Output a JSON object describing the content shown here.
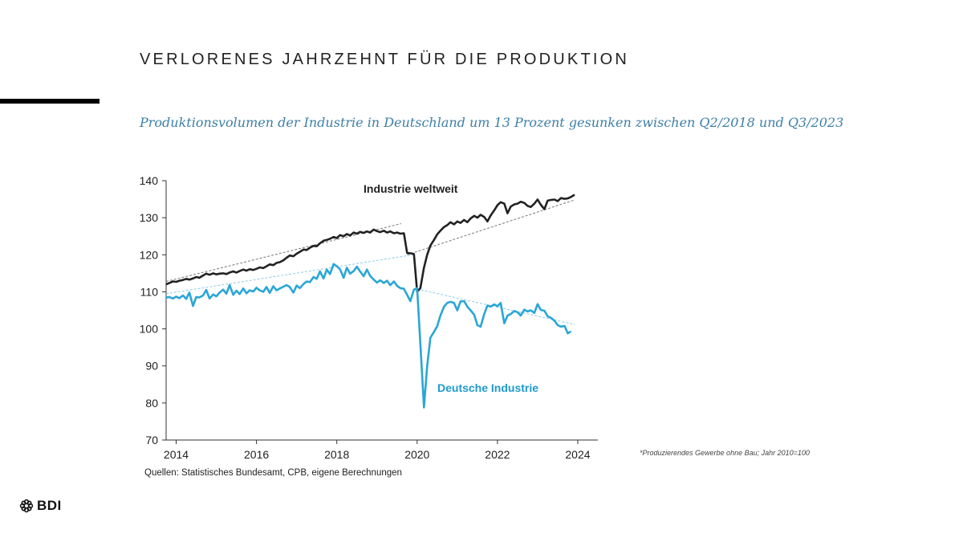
{
  "header": {
    "title": "VERLORENES JAHRZEHNT FÜR DIE PRODUKTION",
    "subtitle": "Produktionsvolumen der Industrie in Deutschland um 13 Prozent gesunken zwischen Q2/2018 und Q3/2023"
  },
  "footnote": "*Produzierendes Gewerbe ohne Bau; Jahr 2010=100",
  "source": "Quellen: Statistisches Bundesamt, CPB,  eigene Berechnungen",
  "logo": {
    "text": "BDI"
  },
  "colors": {
    "world": "#222222",
    "germany": "#2aa6d6",
    "germany_label": "#1e9ad0"
  },
  "chart_data": {
    "type": "line",
    "title": "",
    "xlabel": "",
    "ylabel": "",
    "ylim": [
      70,
      140
    ],
    "xlim": [
      2013.75,
      2024.5
    ],
    "y_ticks": [
      140,
      130,
      120,
      110,
      100,
      90,
      80,
      70
    ],
    "x_ticks": [
      2014,
      2016,
      2018,
      2020,
      2022,
      2024
    ],
    "series": [
      {
        "name": "Industrie weltweit",
        "label": "Industrie weltweit",
        "points": [
          [
            2013.75,
            112.0
          ],
          [
            2013.83,
            112.4
          ],
          [
            2013.92,
            112.8
          ],
          [
            2014.0,
            112.7
          ],
          [
            2014.08,
            113.0
          ],
          [
            2014.17,
            113.2
          ],
          [
            2014.25,
            113.5
          ],
          [
            2014.33,
            113.3
          ],
          [
            2014.42,
            113.6
          ],
          [
            2014.5,
            114.0
          ],
          [
            2014.58,
            113.8
          ],
          [
            2014.67,
            114.4
          ],
          [
            2014.75,
            114.9
          ],
          [
            2014.83,
            114.6
          ],
          [
            2014.92,
            115.0
          ],
          [
            2015.0,
            114.7
          ],
          [
            2015.08,
            114.9
          ],
          [
            2015.17,
            115.0
          ],
          [
            2015.25,
            114.8
          ],
          [
            2015.33,
            115.2
          ],
          [
            2015.42,
            115.5
          ],
          [
            2015.5,
            115.2
          ],
          [
            2015.58,
            115.6
          ],
          [
            2015.67,
            116.0
          ],
          [
            2015.75,
            115.7
          ],
          [
            2015.83,
            116.1
          ],
          [
            2015.92,
            115.9
          ],
          [
            2016.0,
            116.2
          ],
          [
            2016.08,
            116.6
          ],
          [
            2016.17,
            116.4
          ],
          [
            2016.25,
            116.9
          ],
          [
            2016.33,
            117.4
          ],
          [
            2016.42,
            117.2
          ],
          [
            2016.5,
            117.8
          ],
          [
            2016.58,
            118.0
          ],
          [
            2016.67,
            118.5
          ],
          [
            2016.75,
            119.2
          ],
          [
            2016.83,
            119.8
          ],
          [
            2016.92,
            119.6
          ],
          [
            2017.0,
            120.3
          ],
          [
            2017.08,
            120.8
          ],
          [
            2017.17,
            121.4
          ],
          [
            2017.25,
            121.3
          ],
          [
            2017.33,
            121.9
          ],
          [
            2017.42,
            122.4
          ],
          [
            2017.5,
            122.3
          ],
          [
            2017.58,
            123.1
          ],
          [
            2017.67,
            123.8
          ],
          [
            2017.75,
            124.0
          ],
          [
            2017.83,
            124.3
          ],
          [
            2017.92,
            124.8
          ],
          [
            2018.0,
            124.5
          ],
          [
            2018.08,
            125.3
          ],
          [
            2018.17,
            125.0
          ],
          [
            2018.25,
            125.6
          ],
          [
            2018.33,
            125.2
          ],
          [
            2018.42,
            126.0
          ],
          [
            2018.5,
            125.7
          ],
          [
            2018.58,
            126.2
          ],
          [
            2018.67,
            125.9
          ],
          [
            2018.75,
            126.3
          ],
          [
            2018.83,
            126.0
          ],
          [
            2018.92,
            126.8
          ],
          [
            2019.0,
            126.4
          ],
          [
            2019.08,
            126.1
          ],
          [
            2019.17,
            126.5
          ],
          [
            2019.25,
            126.0
          ],
          [
            2019.33,
            126.3
          ],
          [
            2019.42,
            125.8
          ],
          [
            2019.5,
            126.0
          ],
          [
            2019.58,
            125.7
          ],
          [
            2019.67,
            125.8
          ],
          [
            2019.75,
            120.5
          ],
          [
            2019.83,
            120.4
          ],
          [
            2019.92,
            120.2
          ],
          [
            2020.0,
            110.0
          ],
          [
            2020.08,
            111.0
          ],
          [
            2020.17,
            116.5
          ],
          [
            2020.25,
            120.0
          ],
          [
            2020.33,
            122.5
          ],
          [
            2020.42,
            124.0
          ],
          [
            2020.5,
            125.5
          ],
          [
            2020.58,
            126.5
          ],
          [
            2020.67,
            127.5
          ],
          [
            2020.75,
            128.0
          ],
          [
            2020.83,
            128.8
          ],
          [
            2020.92,
            128.2
          ],
          [
            2021.0,
            129.0
          ],
          [
            2021.08,
            128.6
          ],
          [
            2021.17,
            129.4
          ],
          [
            2021.25,
            128.8
          ],
          [
            2021.33,
            129.8
          ],
          [
            2021.42,
            130.5
          ],
          [
            2021.5,
            130.0
          ],
          [
            2021.58,
            130.8
          ],
          [
            2021.67,
            130.2
          ],
          [
            2021.75,
            129.0
          ],
          [
            2021.83,
            130.6
          ],
          [
            2021.92,
            132.0
          ],
          [
            2022.0,
            133.4
          ],
          [
            2022.08,
            134.2
          ],
          [
            2022.17,
            133.8
          ],
          [
            2022.25,
            131.2
          ],
          [
            2022.33,
            133.0
          ],
          [
            2022.42,
            133.6
          ],
          [
            2022.5,
            133.8
          ],
          [
            2022.58,
            134.3
          ],
          [
            2022.67,
            134.0
          ],
          [
            2022.75,
            133.2
          ],
          [
            2022.83,
            132.9
          ],
          [
            2022.92,
            133.8
          ],
          [
            2023.0,
            134.9
          ],
          [
            2023.08,
            133.5
          ],
          [
            2023.17,
            132.3
          ],
          [
            2023.25,
            134.6
          ],
          [
            2023.33,
            134.8
          ],
          [
            2023.42,
            134.9
          ],
          [
            2023.5,
            134.5
          ],
          [
            2023.58,
            135.3
          ],
          [
            2023.67,
            135.1
          ],
          [
            2023.75,
            135.2
          ],
          [
            2023.83,
            135.6
          ],
          [
            2023.92,
            136.2
          ]
        ]
      },
      {
        "name": "Deutsche Industrie",
        "label": "Deutsche Industrie",
        "points": [
          [
            2013.75,
            108.5
          ],
          [
            2013.83,
            108.6
          ],
          [
            2013.92,
            108.2
          ],
          [
            2014.0,
            108.7
          ],
          [
            2014.08,
            108.3
          ],
          [
            2014.17,
            109.0
          ],
          [
            2014.25,
            108.1
          ],
          [
            2014.33,
            109.8
          ],
          [
            2014.42,
            106.2
          ],
          [
            2014.5,
            108.6
          ],
          [
            2014.58,
            108.5
          ],
          [
            2014.67,
            109.0
          ],
          [
            2014.75,
            110.5
          ],
          [
            2014.83,
            108.2
          ],
          [
            2014.92,
            109.3
          ],
          [
            2015.0,
            108.8
          ],
          [
            2015.08,
            109.8
          ],
          [
            2015.17,
            110.6
          ],
          [
            2015.25,
            109.5
          ],
          [
            2015.33,
            111.8
          ],
          [
            2015.42,
            109.2
          ],
          [
            2015.5,
            110.3
          ],
          [
            2015.58,
            109.4
          ],
          [
            2015.67,
            110.9
          ],
          [
            2015.75,
            109.6
          ],
          [
            2015.83,
            110.4
          ],
          [
            2015.92,
            110.1
          ],
          [
            2016.0,
            111.1
          ],
          [
            2016.08,
            110.4
          ],
          [
            2016.17,
            110.0
          ],
          [
            2016.25,
            111.3
          ],
          [
            2016.33,
            109.7
          ],
          [
            2016.42,
            111.5
          ],
          [
            2016.5,
            110.4
          ],
          [
            2016.58,
            110.9
          ],
          [
            2016.67,
            111.4
          ],
          [
            2016.75,
            111.8
          ],
          [
            2016.83,
            111.3
          ],
          [
            2016.92,
            109.8
          ],
          [
            2017.0,
            111.7
          ],
          [
            2017.08,
            111.0
          ],
          [
            2017.17,
            112.1
          ],
          [
            2017.25,
            112.8
          ],
          [
            2017.33,
            112.6
          ],
          [
            2017.42,
            114.0
          ],
          [
            2017.5,
            113.5
          ],
          [
            2017.58,
            115.5
          ],
          [
            2017.67,
            113.6
          ],
          [
            2017.75,
            116.0
          ],
          [
            2017.83,
            114.8
          ],
          [
            2017.92,
            117.5
          ],
          [
            2018.0,
            116.9
          ],
          [
            2018.08,
            116.1
          ],
          [
            2018.17,
            113.8
          ],
          [
            2018.25,
            116.5
          ],
          [
            2018.33,
            114.9
          ],
          [
            2018.42,
            115.6
          ],
          [
            2018.5,
            116.8
          ],
          [
            2018.58,
            115.5
          ],
          [
            2018.67,
            114.2
          ],
          [
            2018.75,
            116.0
          ],
          [
            2018.83,
            114.3
          ],
          [
            2018.92,
            113.3
          ],
          [
            2019.0,
            112.5
          ],
          [
            2019.08,
            113.1
          ],
          [
            2019.17,
            112.4
          ],
          [
            2019.25,
            113.0
          ],
          [
            2019.33,
            111.8
          ],
          [
            2019.42,
            112.8
          ],
          [
            2019.5,
            111.6
          ],
          [
            2019.58,
            111.0
          ],
          [
            2019.67,
            110.8
          ],
          [
            2019.75,
            109.2
          ],
          [
            2019.83,
            107.5
          ],
          [
            2019.92,
            110.6
          ],
          [
            2020.0,
            111.0
          ],
          [
            2020.08,
            96.0
          ],
          [
            2020.17,
            78.8
          ],
          [
            2020.25,
            90.0
          ],
          [
            2020.33,
            97.6
          ],
          [
            2020.42,
            99.2
          ],
          [
            2020.5,
            100.7
          ],
          [
            2020.58,
            103.6
          ],
          [
            2020.67,
            106.0
          ],
          [
            2020.75,
            107.0
          ],
          [
            2020.83,
            107.3
          ],
          [
            2020.92,
            107.0
          ],
          [
            2021.0,
            105.0
          ],
          [
            2021.08,
            107.4
          ],
          [
            2021.17,
            107.5
          ],
          [
            2021.25,
            106.0
          ],
          [
            2021.33,
            105.0
          ],
          [
            2021.42,
            103.8
          ],
          [
            2021.5,
            101.0
          ],
          [
            2021.58,
            100.6
          ],
          [
            2021.67,
            104.0
          ],
          [
            2021.75,
            106.3
          ],
          [
            2021.83,
            106.0
          ],
          [
            2021.92,
            106.6
          ],
          [
            2022.0,
            106.1
          ],
          [
            2022.08,
            107.0
          ],
          [
            2022.17,
            101.5
          ],
          [
            2022.25,
            103.6
          ],
          [
            2022.33,
            104.0
          ],
          [
            2022.42,
            104.8
          ],
          [
            2022.5,
            104.5
          ],
          [
            2022.58,
            103.6
          ],
          [
            2022.67,
            105.2
          ],
          [
            2022.75,
            104.7
          ],
          [
            2022.83,
            105.0
          ],
          [
            2022.92,
            104.3
          ],
          [
            2023.0,
            106.7
          ],
          [
            2023.08,
            105.1
          ],
          [
            2023.17,
            104.9
          ],
          [
            2023.25,
            103.4
          ],
          [
            2023.33,
            103.0
          ],
          [
            2023.42,
            102.2
          ],
          [
            2023.5,
            101.0
          ],
          [
            2023.58,
            100.6
          ],
          [
            2023.67,
            100.8
          ],
          [
            2023.75,
            98.8
          ],
          [
            2023.83,
            99.3
          ]
        ]
      }
    ],
    "trendlines": [
      {
        "series": "Industrie weltweit",
        "points": [
          [
            2013.75,
            112.8
          ],
          [
            2019.6,
            128.4
          ]
        ]
      },
      {
        "series": "Industrie weltweit",
        "points": [
          [
            2019.75,
            120.0
          ],
          [
            2023.92,
            134.8
          ]
        ]
      },
      {
        "series": "Deutsche Industrie",
        "points": [
          [
            2013.75,
            109.5
          ],
          [
            2019.9,
            120.0
          ]
        ]
      },
      {
        "series": "Deutsche Industrie",
        "points": [
          [
            2020.1,
            110.5
          ],
          [
            2023.92,
            101.2
          ]
        ]
      }
    ]
  }
}
